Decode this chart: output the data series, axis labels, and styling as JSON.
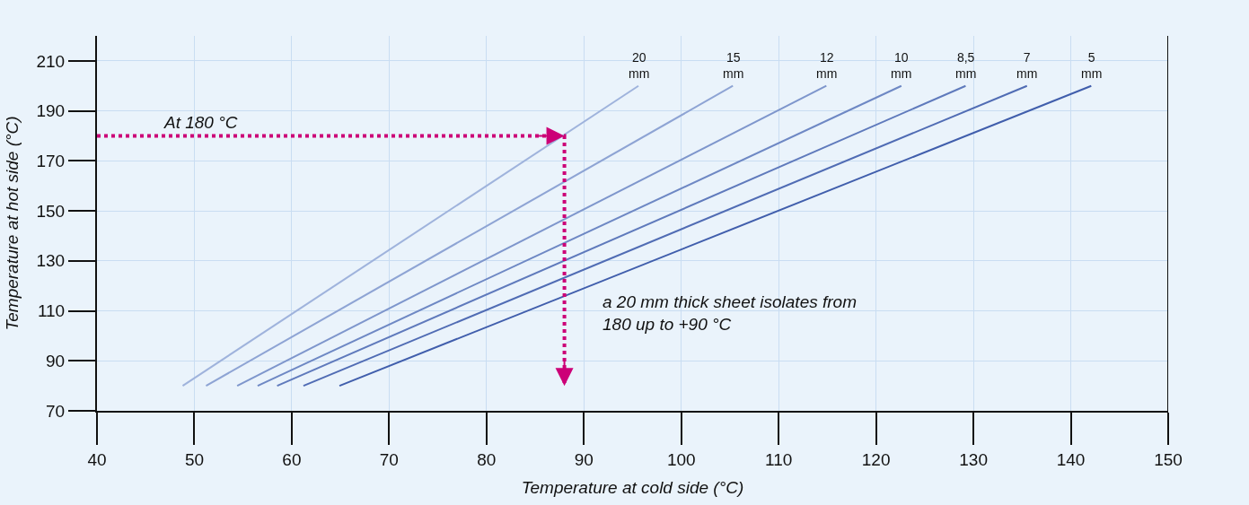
{
  "chart_data": {
    "type": "line",
    "xlabel": "Temperature at cold side (°C)",
    "ylabel": "Temperature at hot side (°C)",
    "xlim": [
      40,
      150
    ],
    "ylim": [
      70,
      220
    ],
    "xticks": [
      40,
      50,
      60,
      70,
      80,
      90,
      100,
      110,
      120,
      130,
      140,
      150
    ],
    "yticks": [
      70,
      90,
      110,
      130,
      150,
      170,
      190,
      210
    ],
    "grid": true,
    "legend": false,
    "marker": "none",
    "line_style": "solid",
    "series": [
      {
        "name": "20 mm",
        "color": "#9fb3dc",
        "x": [
          48.8,
          95.6
        ],
        "values": [
          80,
          200
        ]
      },
      {
        "name": "15 mm",
        "color": "#8ea4d4",
        "x": [
          51.2,
          105.3
        ],
        "values": [
          80,
          200
        ]
      },
      {
        "name": "12 mm",
        "color": "#7e96cc",
        "x": [
          54.4,
          114.9
        ],
        "values": [
          80,
          200
        ]
      },
      {
        "name": "10 mm",
        "color": "#6e88c4",
        "x": [
          56.5,
          122.6
        ],
        "values": [
          80,
          200
        ]
      },
      {
        "name": "8,5 mm",
        "color": "#5f7abc",
        "x": [
          58.5,
          129.2
        ],
        "values": [
          80,
          200
        ]
      },
      {
        "name": "7 mm",
        "color": "#506cb4",
        "x": [
          61.2,
          135.5
        ],
        "values": [
          80,
          200
        ]
      },
      {
        "name": "5 mm",
        "color": "#405eac",
        "x": [
          64.9,
          142.1
        ],
        "values": [
          80,
          200
        ]
      },
      {
        "color": "#cc0077",
        "line_style": "dotted",
        "x": [
          40,
          88,
          88
        ],
        "values": [
          180,
          180,
          80
        ]
      }
    ],
    "annotations": [
      "At 180 °C",
      "a 20 mm thick sheet isolates from 180 up to +90 °C"
    ]
  }
}
